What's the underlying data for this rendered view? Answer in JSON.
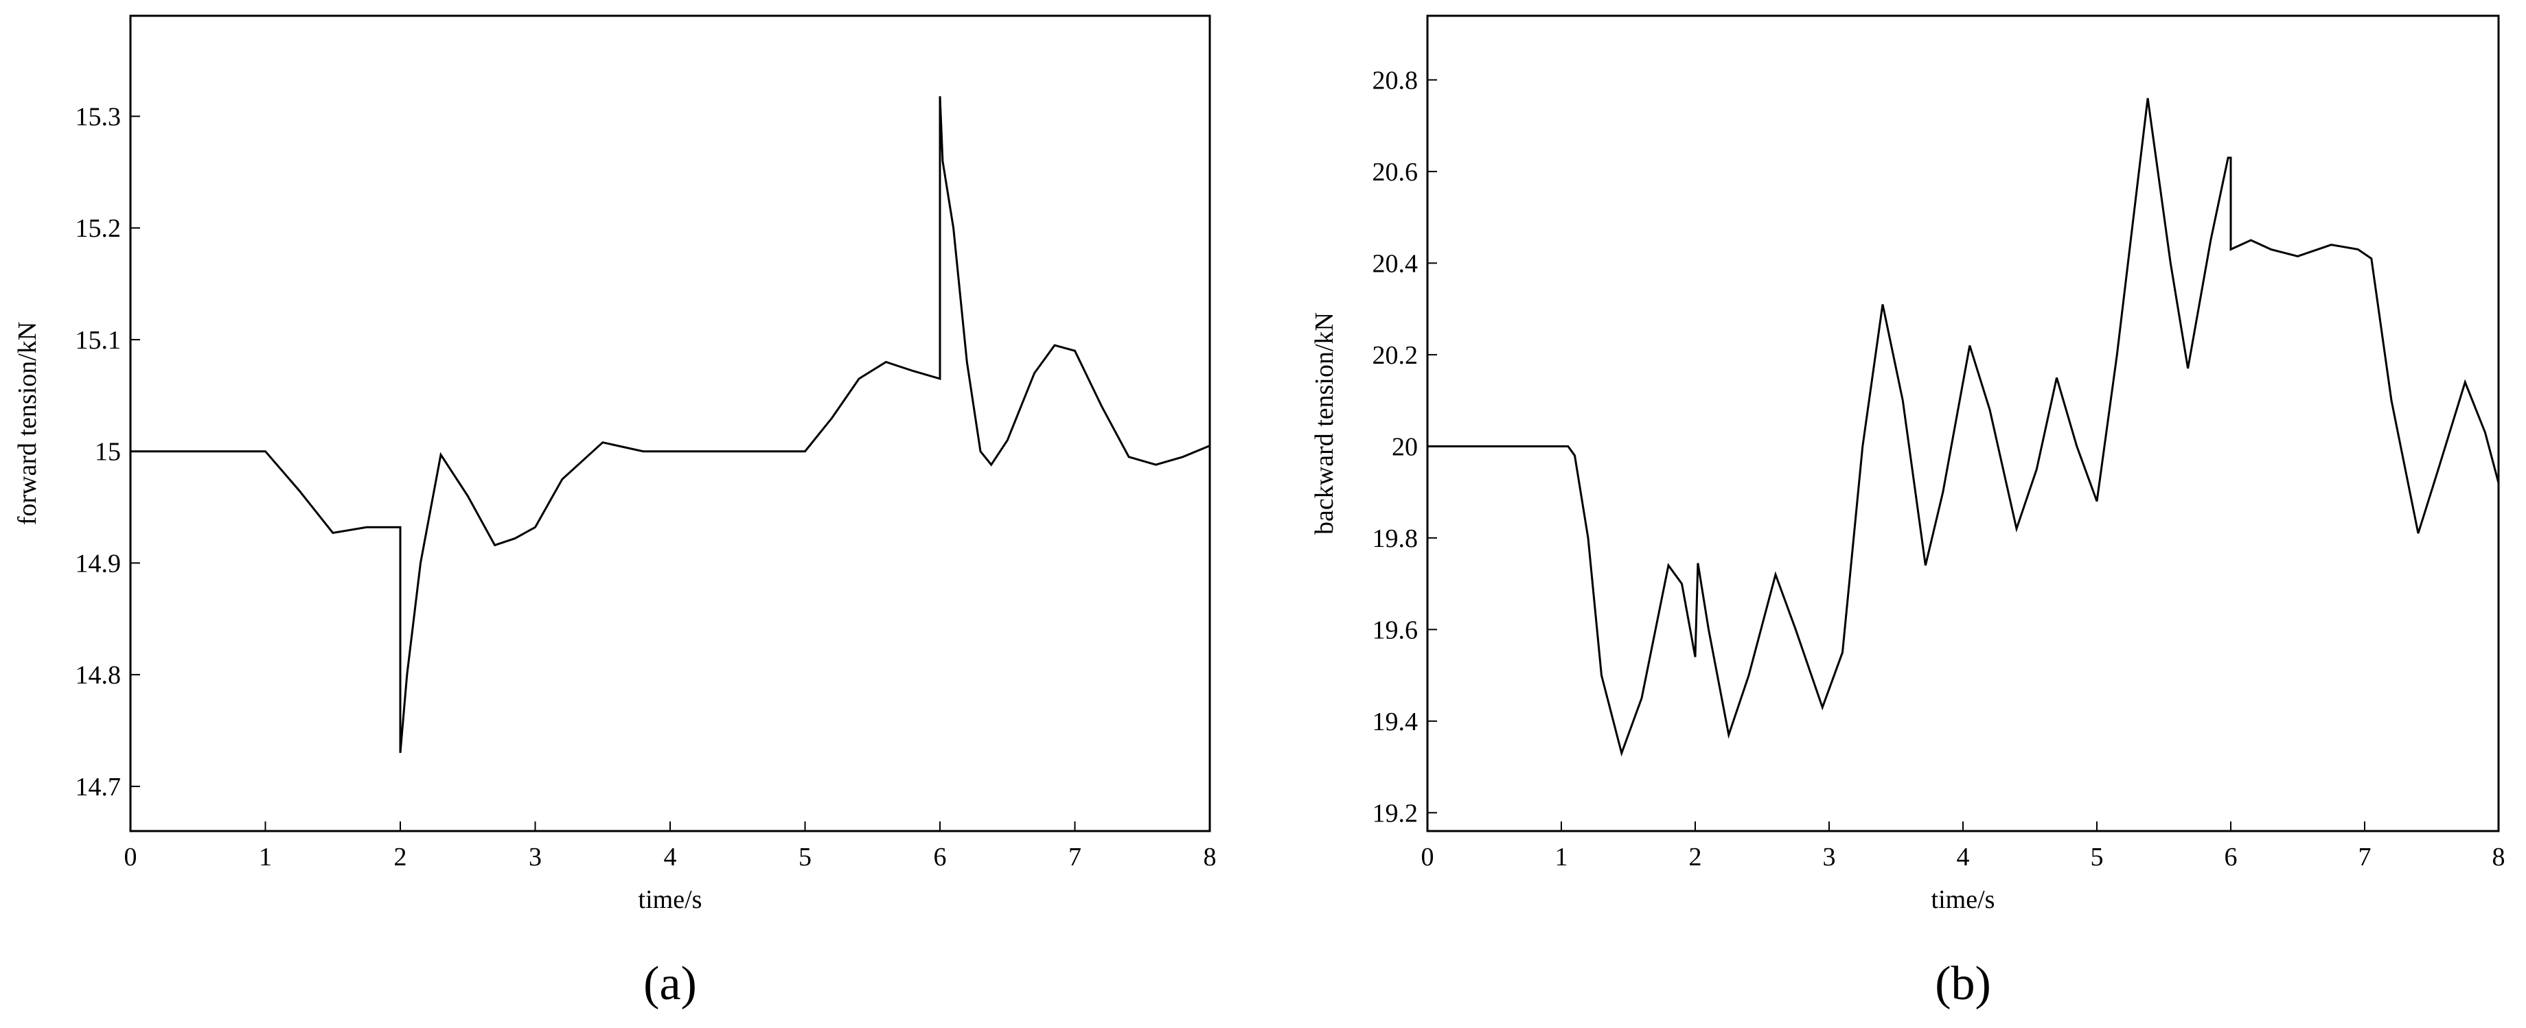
{
  "chart_data": [
    {
      "type": "line",
      "caption": "(a)",
      "xlabel": "time/s",
      "ylabel": "forward tension/kN",
      "color": "#000000",
      "x": [
        0,
        1,
        1.25,
        1.5,
        1.75,
        1.99,
        2.0,
        2.0,
        2.05,
        2.15,
        2.3,
        2.5,
        2.7,
        2.85,
        3.0,
        3.2,
        3.5,
        3.8,
        4.0,
        4.5,
        5.0,
        5.2,
        5.4,
        5.6,
        5.8,
        6.0,
        6.0,
        6.02,
        6.1,
        6.2,
        6.3,
        6.38,
        6.5,
        6.7,
        6.85,
        7.0,
        7.2,
        7.4,
        7.6,
        7.8,
        8.0
      ],
      "values": [
        15,
        15,
        14.965,
        14.927,
        14.932,
        14.932,
        14.932,
        14.73,
        14.8,
        14.9,
        14.997,
        14.96,
        14.916,
        14.922,
        14.932,
        14.975,
        15.008,
        15.0,
        15.0,
        15.0,
        15.0,
        15.03,
        15.065,
        15.08,
        15.072,
        15.065,
        15.318,
        15.26,
        15.2,
        15.08,
        15.0,
        14.988,
        15.01,
        15.07,
        15.095,
        15.09,
        15.04,
        14.995,
        14.988,
        14.995,
        15.005
      ],
      "xlim": [
        0,
        8
      ],
      "xticks": [
        0,
        1,
        2,
        3,
        4,
        5,
        6,
        7,
        8
      ],
      "ylim": [
        14.66,
        15.39
      ],
      "yticks": [
        14.7,
        14.8,
        14.9,
        15,
        15.1,
        15.2,
        15.3
      ]
    },
    {
      "type": "line",
      "caption": "(b)",
      "xlabel": "time/s",
      "ylabel": "backward tension/kN",
      "color": "#000000",
      "x": [
        0,
        1.05,
        1.1,
        1.2,
        1.3,
        1.45,
        1.6,
        1.8,
        1.9,
        2.0,
        2.02,
        2.1,
        2.25,
        2.4,
        2.6,
        2.75,
        2.95,
        3.1,
        3.25,
        3.4,
        3.55,
        3.72,
        3.85,
        4.05,
        4.2,
        4.4,
        4.55,
        4.7,
        4.85,
        5.0,
        5.15,
        5.38,
        5.55,
        5.68,
        5.85,
        5.98,
        6.0,
        6.0,
        6.15,
        6.3,
        6.5,
        6.75,
        6.95,
        7.05,
        7.2,
        7.4,
        7.55,
        7.75,
        7.9,
        8.0
      ],
      "values": [
        20,
        20,
        19.98,
        19.8,
        19.5,
        19.33,
        19.45,
        19.74,
        19.7,
        19.54,
        19.745,
        19.6,
        19.37,
        19.5,
        19.72,
        19.6,
        19.43,
        19.55,
        20.0,
        20.31,
        20.1,
        19.74,
        19.9,
        20.22,
        20.08,
        19.82,
        19.95,
        20.15,
        20.0,
        19.88,
        20.2,
        20.76,
        20.4,
        20.17,
        20.45,
        20.63,
        20.63,
        20.43,
        20.45,
        20.43,
        20.415,
        20.44,
        20.43,
        20.41,
        20.1,
        19.81,
        19.95,
        20.14,
        20.03,
        19.92
      ],
      "xlim": [
        0,
        8
      ],
      "xticks": [
        0,
        1,
        2,
        3,
        4,
        5,
        6,
        7,
        8
      ],
      "ylim": [
        19.16,
        20.94
      ],
      "yticks": [
        19.2,
        19.4,
        19.6,
        19.8,
        20,
        20.2,
        20.4,
        20.6,
        20.8
      ]
    }
  ]
}
